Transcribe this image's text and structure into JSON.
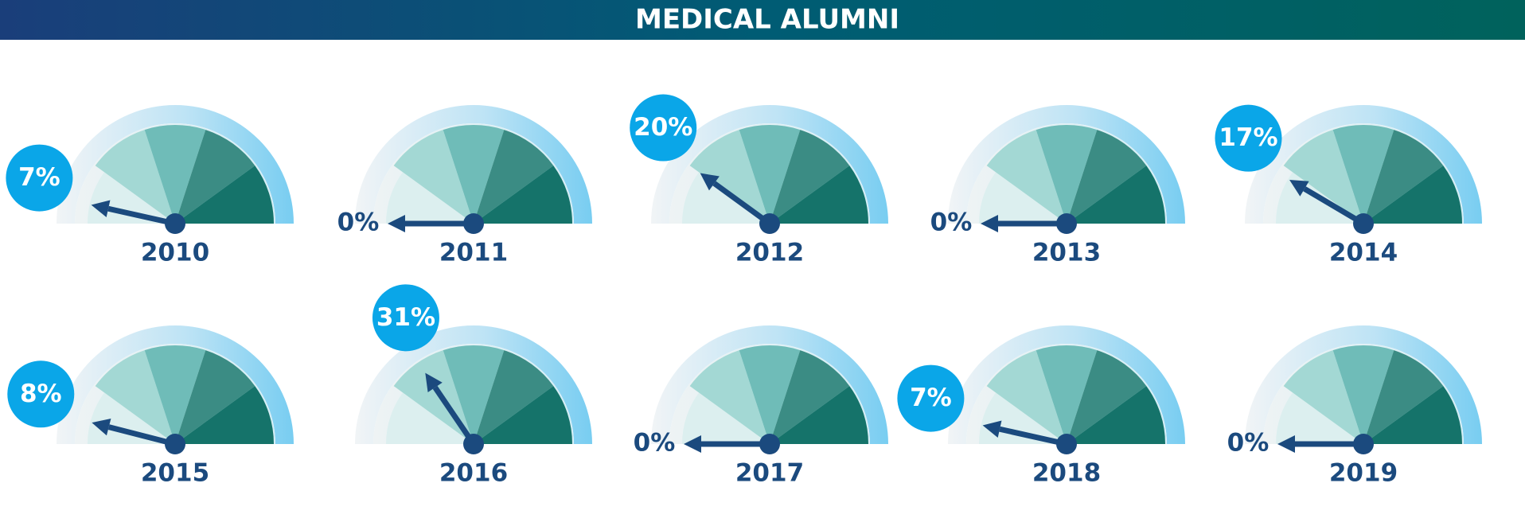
{
  "chart_data": {
    "type": "gauge",
    "title": "MEDICAL ALUMNI",
    "categories": [
      "2010",
      "2011",
      "2012",
      "2013",
      "2014",
      "2015",
      "2016",
      "2017",
      "2018",
      "2019"
    ],
    "values": [
      7,
      0,
      20,
      0,
      17,
      8,
      31,
      0,
      7,
      0
    ],
    "value_labels": [
      "7%",
      "0%",
      "20%",
      "0%",
      "17%",
      "8%",
      "31%",
      "0%",
      "7%",
      "0%"
    ],
    "ylim": [
      0,
      100
    ],
    "color": "#1b4a7e"
  }
}
